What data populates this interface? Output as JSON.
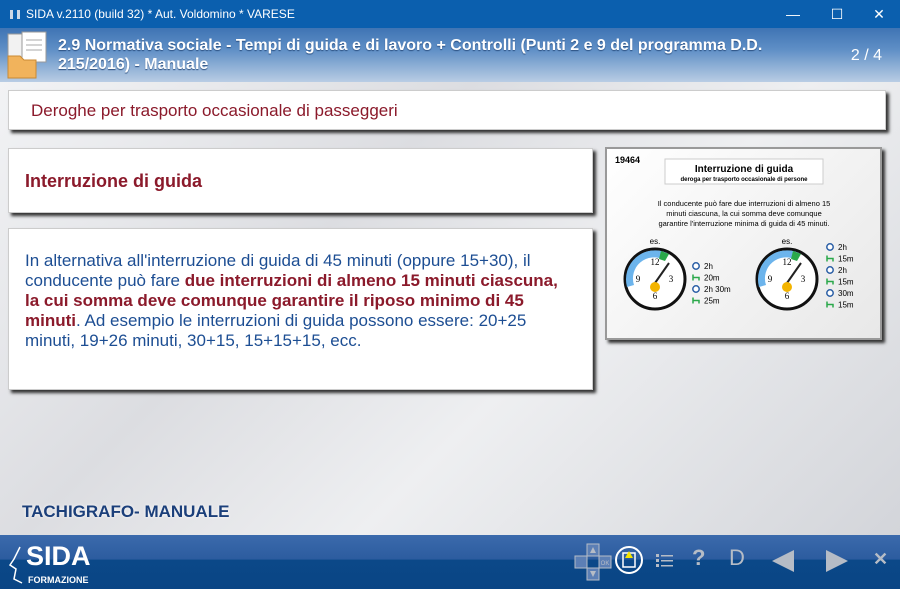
{
  "window": {
    "title": "SIDA v.2110 (build 32) * Aut. Voldomino * VARESE",
    "minimize": "—",
    "maximize": "☐",
    "close": "✕"
  },
  "header": {
    "title": "2.9 Normativa sociale - Tempi di guida e di lavoro + Controlli (Punti 2 e 9 del programma D.D. 215/2016) - Manuale",
    "page": "2 / 4"
  },
  "section": {
    "title": "Deroghe per trasporto occasionale di passeggeri",
    "heading": "Interruzione di guida",
    "body_1": "In alternativa all'interruzione di guida di 45 minuti (oppure 15+30), il conducente può fare ",
    "body_bold": "due interruzioni di almeno 15 minuti ciascuna, la cui somma deve comunque garantire il riposo minimo di 45 minuti",
    "body_2": ". Ad esempio le interruzioni di guida possono essere: 20+25 minuti, 19+26 minuti, 30+15, 15+15+15, ecc."
  },
  "figure": {
    "id": "19464",
    "title": "Interruzione di guida",
    "subtitle": "deroga per trasporto occasionale di persone",
    "text": [
      "Il conducente può fare due interruzioni di almeno 15",
      "minuti ciascuna, la cui somma deve comunque",
      "garantire l'interruzione minima di guida di 45 minuti."
    ],
    "es": "es.",
    "left": [
      {
        "icon": "steering-wheel",
        "v": "2h"
      },
      {
        "icon": "bed",
        "v": "20m"
      },
      {
        "icon": "steering-wheel",
        "v": "2h 30m"
      },
      {
        "icon": "bed",
        "v": "25m"
      }
    ],
    "right": [
      {
        "icon": "steering-wheel",
        "v": "2h"
      },
      {
        "icon": "bed",
        "v": "15m"
      },
      {
        "icon": "steering-wheel",
        "v": "2h"
      },
      {
        "icon": "bed",
        "v": "15m"
      },
      {
        "icon": "steering-wheel",
        "v": "30m"
      },
      {
        "icon": "bed",
        "v": "15m"
      }
    ],
    "colors": {
      "driving": "#6cb4ec",
      "rest": "#2aa84a"
    }
  },
  "brand": "TACHIGRAFO- MANUALE",
  "footer": {
    "logo": "SIDA",
    "logo_sub": "FORMAZIONE",
    "help": "?",
    "d": "D",
    "ok": "OK",
    "close": "✕"
  }
}
